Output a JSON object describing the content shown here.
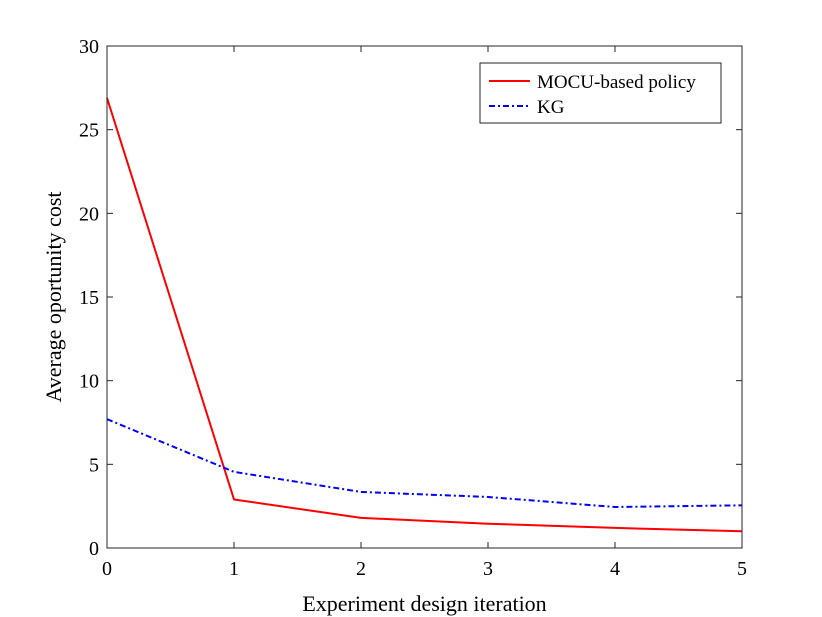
{
  "chart_data": {
    "type": "line",
    "title": "",
    "xlabel": "Experiment design iteration",
    "ylabel": "Average oportunity cost",
    "x": [
      0,
      1,
      2,
      3,
      4,
      5
    ],
    "xlim": [
      0,
      5
    ],
    "ylim": [
      0,
      30
    ],
    "xticks": [
      0,
      1,
      2,
      3,
      4,
      5
    ],
    "yticks": [
      0,
      5,
      10,
      15,
      20,
      25,
      30
    ],
    "grid": false,
    "legend_position": "top-right",
    "series": [
      {
        "name": "MOCU-based policy",
        "color": "#ff0000",
        "line_style": "solid",
        "values": [
          26.9,
          2.9,
          1.8,
          1.45,
          1.2,
          1.0
        ]
      },
      {
        "name": "KG",
        "color": "#0000ff",
        "line_style": "dash-dot",
        "values": [
          7.7,
          4.55,
          3.35,
          3.05,
          2.45,
          2.55
        ]
      }
    ]
  }
}
